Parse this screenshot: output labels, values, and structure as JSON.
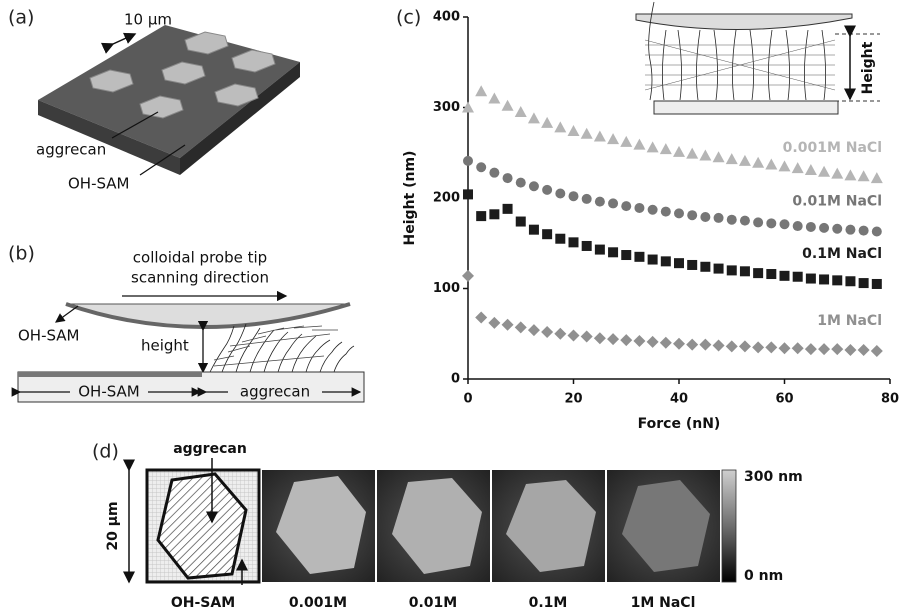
{
  "panels": {
    "a": {
      "label": "(a)",
      "scale": "10 μm",
      "labels": [
        "aggrecan",
        "OH-SAM"
      ]
    },
    "b": {
      "label": "(b)",
      "tip": "colloidal probe tip",
      "direction": "scanning direction",
      "sam_top": "OH-SAM",
      "height": "height",
      "sam_bottom": "OH-SAM",
      "aggrecan": "aggrecan"
    },
    "c": {
      "label": "(c)",
      "inset_label": "Height"
    },
    "d": {
      "label": "(d)",
      "aggrecan": "aggrecan",
      "scale": "20 μm",
      "sam": "OH-SAM",
      "conditions": [
        "0.001M",
        "0.01M",
        "0.1M",
        "1M  NaCl"
      ],
      "colorbar": [
        "300 nm",
        "0 nm"
      ]
    }
  },
  "chart_data": {
    "type": "scatter",
    "xlabel": "Force (nN)",
    "ylabel": "Height (nm)",
    "xlim": [
      0,
      80
    ],
    "xticks": [
      0,
      20,
      40,
      60,
      80
    ],
    "ylim": [
      0,
      400
    ],
    "yticks": [
      0,
      100,
      200,
      300,
      400
    ],
    "x": [
      0,
      2.5,
      5,
      7.5,
      10,
      12.5,
      15,
      17.5,
      20,
      22.5,
      25,
      27.5,
      30,
      32.5,
      35,
      37.5,
      40,
      42.5,
      45,
      47.5,
      50,
      52.5,
      55,
      57.5,
      60,
      62.5,
      65,
      67.5,
      70,
      72.5,
      75,
      77.5
    ],
    "series": [
      {
        "name": "0.001M NaCl",
        "color": "#b5b5b5",
        "marker": "triangle",
        "values": [
          300,
          318,
          310,
          302,
          295,
          288,
          283,
          278,
          274,
          271,
          268,
          265,
          262,
          259,
          256,
          254,
          251,
          249,
          247,
          245,
          243,
          241,
          239,
          237,
          235,
          233,
          231,
          229,
          227,
          225,
          224,
          222
        ]
      },
      {
        "name": "0.01M NaCl",
        "color": "#767676",
        "marker": "circle",
        "values": [
          241,
          234,
          228,
          222,
          217,
          213,
          209,
          205,
          202,
          199,
          196,
          194,
          191,
          189,
          187,
          185,
          183,
          181,
          179,
          178,
          176,
          175,
          173,
          172,
          171,
          169,
          168,
          167,
          166,
          165,
          164,
          163
        ]
      },
      {
        "name": "0.1M NaCl",
        "color": "#1c1c1c",
        "marker": "square",
        "values": [
          204,
          180,
          182,
          188,
          174,
          165,
          160,
          155,
          151,
          147,
          143,
          140,
          137,
          135,
          132,
          130,
          128,
          126,
          124,
          122,
          120,
          119,
          117,
          116,
          114,
          113,
          111,
          110,
          109,
          108,
          106,
          105
        ]
      },
      {
        "name": "1M NaCl",
        "color": "#909090",
        "marker": "diamond",
        "values": [
          114,
          68,
          62,
          60,
          57,
          54,
          52,
          50,
          48,
          47,
          45,
          44,
          43,
          42,
          41,
          40,
          39,
          38,
          38,
          37,
          36,
          36,
          35,
          35,
          34,
          34,
          33,
          33,
          33,
          32,
          32,
          31
        ]
      }
    ]
  }
}
